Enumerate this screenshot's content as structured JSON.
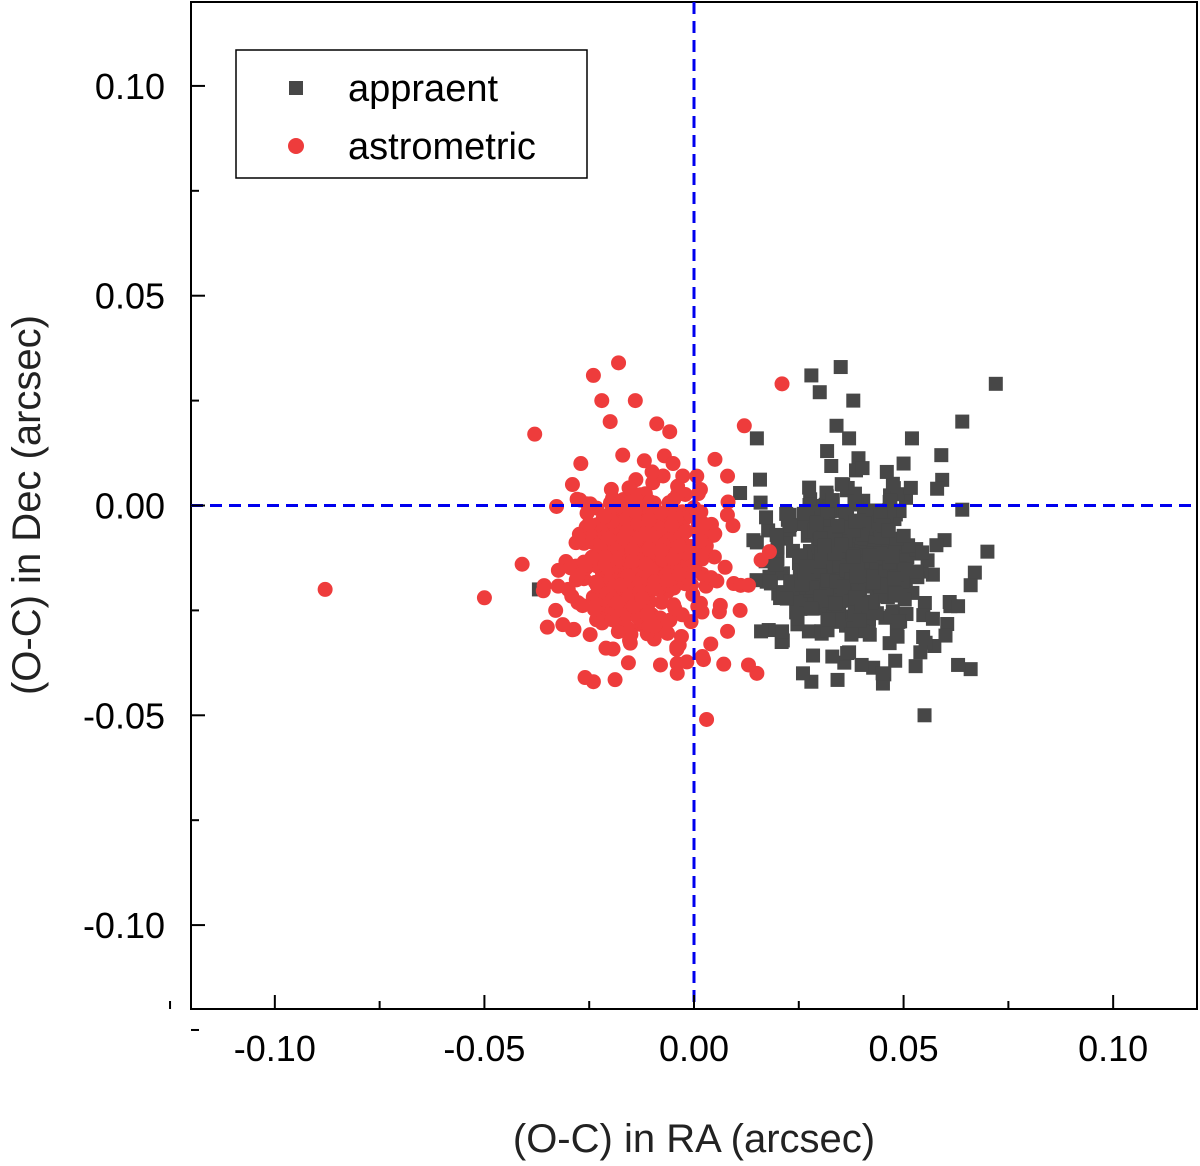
{
  "chart_data": {
    "type": "scatter",
    "title": "",
    "xlabel": "(O-C) in RA (arcsec)",
    "ylabel": "(O-C) in Dec (arcsec)",
    "xlim": [
      -0.12,
      0.12
    ],
    "ylim": [
      -0.12,
      0.12
    ],
    "x_ticks": [
      -0.1,
      -0.05,
      0.0,
      0.05,
      0.1
    ],
    "x_tick_labels": [
      "-0.10",
      "-0.05",
      "0.00",
      "0.05",
      "0.10"
    ],
    "y_ticks": [
      -0.1,
      -0.05,
      0.0,
      0.05,
      0.1
    ],
    "y_tick_labels": [
      "-0.10",
      "-0.05",
      "0.00",
      "0.05",
      "0.10"
    ],
    "grid": false,
    "reference_lines": {
      "x": 0.0,
      "y": 0.0,
      "color": "#0000ee",
      "style": "dashed"
    },
    "legend": {
      "position": "top-left"
    },
    "series": [
      {
        "name": "appraent",
        "marker": "square",
        "color": "#474747",
        "cluster": {
          "center": [
            0.037,
            -0.014
          ],
          "spread": [
            0.0085,
            0.0095
          ],
          "n": 480,
          "seed": 17
        },
        "points": [
          [
            0.072,
            0.029
          ],
          [
            0.035,
            0.033
          ],
          [
            0.028,
            0.031
          ],
          [
            0.038,
            0.025
          ],
          [
            0.03,
            0.027
          ],
          [
            0.064,
            0.02
          ],
          [
            0.015,
            0.016
          ],
          [
            0.034,
            0.019
          ],
          [
            0.052,
            0.016
          ],
          [
            0.037,
            0.016
          ],
          [
            0.059,
            0.012
          ],
          [
            0.064,
            -0.001
          ],
          [
            0.07,
            -0.011
          ],
          [
            0.066,
            -0.039
          ],
          [
            0.063,
            -0.038
          ],
          [
            0.055,
            -0.05
          ],
          [
            0.028,
            -0.042
          ],
          [
            0.026,
            -0.04
          ],
          [
            0.037,
            -0.035
          ],
          [
            0.016,
            -0.03
          ],
          [
            -0.037,
            -0.02
          ],
          [
            0.054,
            -0.035
          ],
          [
            0.048,
            -0.037
          ],
          [
            0.06,
            -0.031
          ],
          [
            0.018,
            -0.018
          ],
          [
            0.022,
            -0.002
          ],
          [
            0.05,
            0.01
          ],
          [
            0.046,
            0.008
          ],
          [
            0.058,
            0.004
          ],
          [
            0.061,
            -0.023
          ],
          [
            0.063,
            -0.024
          ],
          [
            0.057,
            -0.027
          ],
          [
            0.021,
            -0.03
          ],
          [
            0.045,
            -0.04
          ],
          [
            0.04,
            -0.038
          ],
          [
            0.033,
            -0.036
          ],
          [
            0.067,
            -0.016
          ],
          [
            0.066,
            -0.019
          ]
        ]
      },
      {
        "name": "astrometric",
        "marker": "circle",
        "color": "#ee3c3c",
        "cluster": {
          "center": [
            -0.013,
            -0.013
          ],
          "spread": [
            0.0085,
            0.0095
          ],
          "n": 480,
          "seed": 29
        },
        "points": [
          [
            -0.088,
            -0.02
          ],
          [
            -0.05,
            -0.022
          ],
          [
            -0.018,
            0.034
          ],
          [
            -0.024,
            0.031
          ],
          [
            0.021,
            0.029
          ],
          [
            -0.014,
            0.025
          ],
          [
            -0.022,
            0.025
          ],
          [
            -0.038,
            0.017
          ],
          [
            0.012,
            0.019
          ],
          [
            -0.02,
            0.02
          ],
          [
            -0.017,
            0.012
          ],
          [
            0.003,
            -0.051
          ],
          [
            -0.024,
            -0.042
          ],
          [
            -0.026,
            -0.041
          ],
          [
            0.015,
            -0.04
          ],
          [
            0.013,
            -0.038
          ],
          [
            -0.035,
            -0.029
          ],
          [
            -0.041,
            -0.014
          ],
          [
            0.008,
            0.007
          ],
          [
            0.005,
            0.011
          ],
          [
            0.016,
            -0.013
          ],
          [
            0.018,
            -0.011
          ],
          [
            0.013,
            -0.019
          ],
          [
            0.011,
            -0.025
          ],
          [
            -0.004,
            -0.04
          ],
          [
            -0.008,
            -0.038
          ],
          [
            0.004,
            -0.033
          ],
          [
            0.008,
            -0.03
          ],
          [
            -0.03,
            -0.02
          ],
          [
            -0.033,
            -0.025
          ],
          [
            -0.027,
            0.01
          ],
          [
            -0.029,
            0.005
          ],
          [
            -0.01,
            0.008
          ],
          [
            -0.005,
            0.01
          ],
          [
            0.002,
            -0.036
          ],
          [
            -0.021,
            -0.034
          ]
        ]
      }
    ]
  }
}
